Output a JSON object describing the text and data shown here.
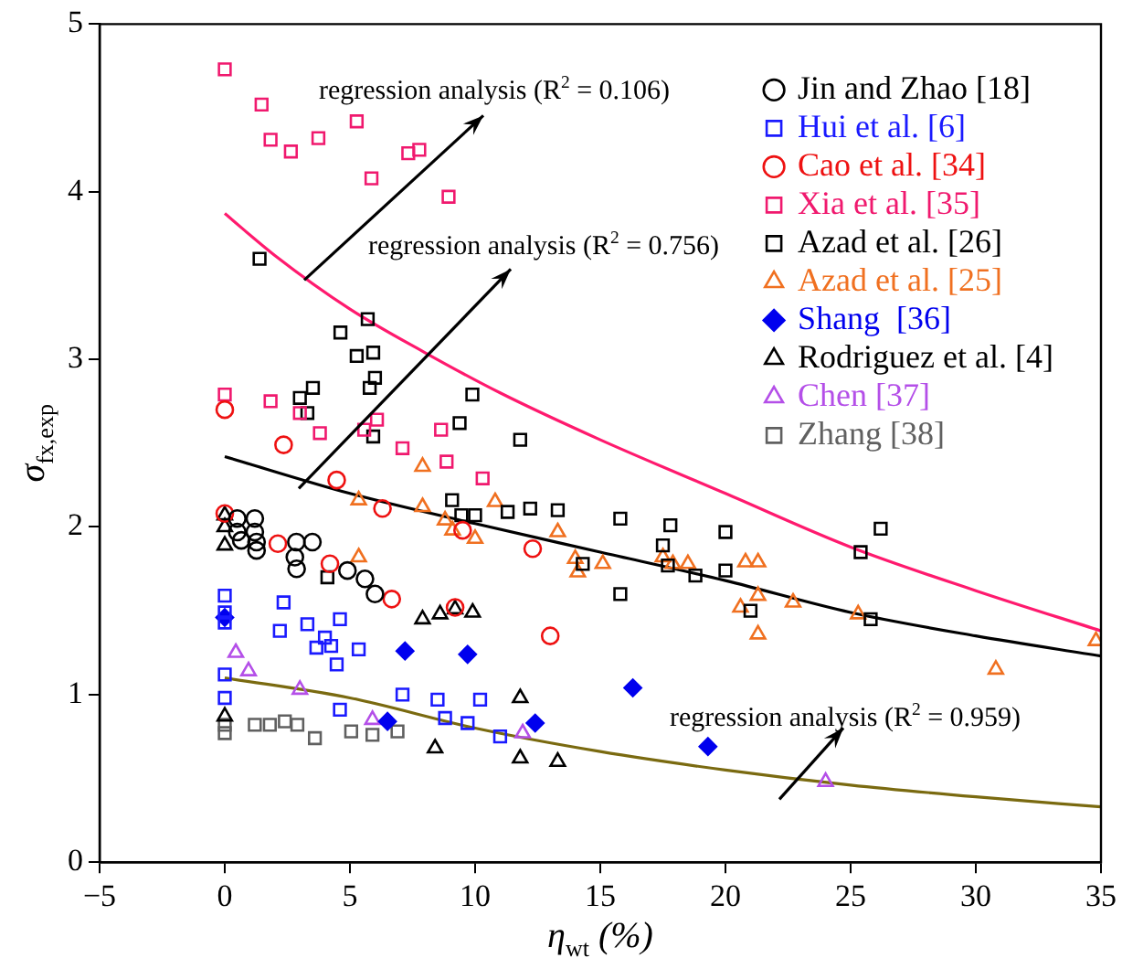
{
  "chart_data": {
    "type": "scatter",
    "xlabel": "η$_{wt}$ (%)",
    "ylabel": "σ$_{fx,exp}$",
    "xlim": [
      -5,
      35
    ],
    "xticks": [
      {
        "value": -5,
        "label": "−5"
      },
      0,
      5,
      10,
      15,
      20,
      25,
      30,
      35
    ],
    "ylim": [
      0,
      5
    ],
    "yticks": [
      0,
      1,
      2,
      3,
      4,
      5
    ],
    "grid": false,
    "legend": "top right",
    "annotations": [
      "regression analysis (R$^{2}$ = 0.106)",
      "regression analysis (R$^{2}$ = 0.756)",
      "regression analysis (R$^{2}$ = 0.959)"
    ],
    "series": [
      {
        "name": "Jin and Zhao [18]",
        "color": "#000000",
        "marker": "circle",
        "x": [
          0.5,
          1.2,
          0.5,
          1.2,
          0.66,
          1.27,
          1.27,
          2.86,
          3.5,
          2.8,
          2.87,
          4.9,
          5.6,
          6.0
        ],
        "values": [
          2.05,
          2.05,
          1.97,
          1.97,
          1.92,
          1.91,
          1.86,
          1.91,
          1.91,
          1.82,
          1.75,
          1.74,
          1.69,
          1.6
        ]
      },
      {
        "name": "Hui et al. [6]",
        "color": "#1a1aff",
        "marker": "square",
        "x": [
          0,
          0,
          0,
          2.35,
          2.2,
          3.3,
          4.6,
          4.0,
          3.66,
          4.25,
          5.35,
          4.47,
          0,
          0,
          4.6,
          7.1,
          8.5,
          10.2,
          8.8,
          9.7,
          11.0
        ],
        "values": [
          1.59,
          1.49,
          1.43,
          1.55,
          1.38,
          1.42,
          1.45,
          1.34,
          1.28,
          1.29,
          1.27,
          1.18,
          1.12,
          0.98,
          0.91,
          1.0,
          0.97,
          0.97,
          0.86,
          0.83,
          0.75
        ]
      },
      {
        "name": "Cao et al. [34]",
        "color": "#ee1111",
        "marker": "circle",
        "x": [
          0,
          2.35,
          0,
          4.47,
          6.3,
          2.12,
          4.2,
          6.67,
          9.2,
          9.5,
          12.3,
          13.0
        ],
        "values": [
          2.7,
          2.49,
          2.08,
          2.28,
          2.11,
          1.9,
          1.78,
          1.57,
          1.52,
          1.98,
          1.87,
          1.35
        ]
      },
      {
        "name": "Xia et al. [35]",
        "color": "#f0196e",
        "marker": "square",
        "x": [
          0,
          1.47,
          1.83,
          2.64,
          3.74,
          5.27,
          7.33,
          7.77,
          5.86,
          8.94,
          0,
          1.83,
          3.8,
          6.08,
          5.57,
          7.1,
          8.64,
          8.86,
          10.3,
          3.0
        ],
        "values": [
          4.73,
          4.52,
          4.31,
          4.24,
          4.32,
          4.42,
          4.23,
          4.25,
          4.08,
          3.97,
          2.79,
          2.75,
          2.56,
          2.64,
          2.58,
          2.47,
          2.58,
          2.39,
          2.29,
          2.68
        ]
      },
      {
        "name": "Azad et al. [26]",
        "color": "#000000",
        "marker": "square",
        "x": [
          1.39,
          5.71,
          4.62,
          5.27,
          5.93,
          6.0,
          5.79,
          3.52,
          3.0,
          3.3,
          9.89,
          9.38,
          5.93,
          9.08,
          9.45,
          10.0,
          4.1,
          11.8,
          11.3,
          12.2,
          13.3,
          15.8,
          17.8,
          20.0,
          15.8,
          17.5,
          17.7,
          14.3,
          18.8,
          20.0,
          21.0,
          26.2,
          25.4,
          25.8
        ],
        "values": [
          3.6,
          3.24,
          3.16,
          3.02,
          3.04,
          2.89,
          2.83,
          2.83,
          2.77,
          2.68,
          2.79,
          2.62,
          2.54,
          2.16,
          2.07,
          2.07,
          1.7,
          2.52,
          2.09,
          2.11,
          2.1,
          2.05,
          2.01,
          1.97,
          1.6,
          1.89,
          1.77,
          1.78,
          1.71,
          1.74,
          1.5,
          1.99,
          1.85,
          1.45
        ]
      },
      {
        "name": "Azad et al. [25]",
        "color": "#f07020",
        "marker": "triangle",
        "x": [
          7.9,
          5.35,
          7.9,
          10.8,
          8.8,
          9.1,
          10.0,
          5.35,
          13.3,
          14.0,
          14.1,
          15.1,
          17.5,
          17.9,
          18.5,
          20.8,
          21.3,
          20.6,
          21.3,
          22.7,
          21.3,
          25.3,
          30.8,
          34.8
        ],
        "values": [
          2.36,
          2.16,
          2.12,
          2.15,
          2.04,
          1.98,
          1.93,
          1.82,
          1.97,
          1.81,
          1.73,
          1.78,
          1.82,
          1.78,
          1.78,
          1.79,
          1.79,
          1.52,
          1.59,
          1.55,
          1.36,
          1.48,
          1.15,
          1.32
        ]
      },
      {
        "name": "Shang  [36]",
        "color": "#0000ee",
        "marker": "diamond",
        "x": [
          0,
          7.2,
          9.7,
          6.5,
          16.3,
          12.4,
          19.3
        ],
        "values": [
          1.46,
          1.26,
          1.24,
          0.84,
          1.04,
          0.83,
          0.69
        ]
      },
      {
        "name": "Rodriguez et al. [4]",
        "color": "#000000",
        "marker": "triangle",
        "x": [
          0,
          0,
          0,
          0,
          7.9,
          8.6,
          9.2,
          9.9,
          8.4,
          11.8,
          11.8,
          13.3
        ],
        "values": [
          2.07,
          2.0,
          1.89,
          0.87,
          1.45,
          1.48,
          1.51,
          1.49,
          0.68,
          0.98,
          0.62,
          0.6
        ]
      },
      {
        "name": "Chen [37]",
        "color": "#b44fe8",
        "marker": "triangle",
        "x": [
          0.44,
          0.95,
          3.0,
          5.9,
          11.9,
          24.0
        ],
        "values": [
          1.25,
          1.14,
          1.03,
          0.85,
          0.77,
          0.48
        ]
      },
      {
        "name": "Zhang [38]",
        "color": "#606060",
        "marker": "square",
        "x": [
          0,
          0,
          1.2,
          1.8,
          2.4,
          2.9,
          3.6,
          5.05,
          5.9,
          6.9
        ],
        "values": [
          0.82,
          0.77,
          0.82,
          0.82,
          0.84,
          0.82,
          0.74,
          0.78,
          0.76,
          0.78
        ]
      },
      {
        "type": "line",
        "color": "#ff1a6e",
        "marker": "none",
        "x": [
          0,
          2,
          5,
          8,
          11,
          15,
          20,
          25,
          30,
          35
        ],
        "values": [
          3.87,
          3.62,
          3.3,
          3.04,
          2.8,
          2.52,
          2.2,
          1.88,
          1.62,
          1.38
        ]
      },
      {
        "type": "line",
        "color": "#000000",
        "marker": "none",
        "x": [
          0,
          5,
          10,
          15,
          20,
          25,
          30,
          35
        ],
        "values": [
          2.42,
          2.2,
          2.02,
          1.85,
          1.68,
          1.49,
          1.35,
          1.23
        ]
      },
      {
        "type": "line",
        "color": "#7a6a10",
        "marker": "none",
        "x": [
          0,
          5,
          10,
          15,
          20,
          25,
          30,
          35
        ],
        "values": [
          1.1,
          0.98,
          0.8,
          0.66,
          0.55,
          0.46,
          0.39,
          0.33
        ]
      }
    ]
  }
}
